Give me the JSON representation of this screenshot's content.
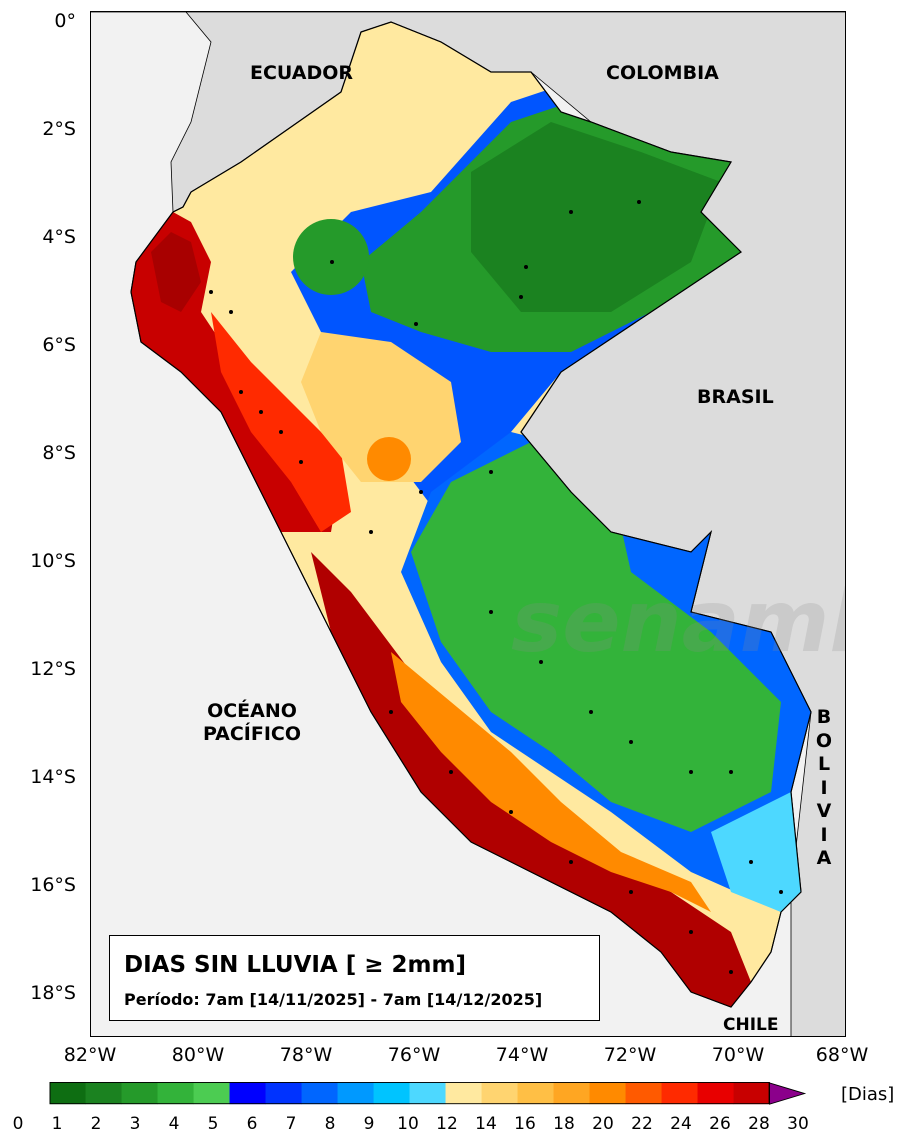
{
  "title": "DIAS SIN LLUVIA [ ≥ 2mm]",
  "period": "Período: 7am [14/11/2025] - 7am [14/12/2025]",
  "watermark": "senamhi",
  "lat_labels": [
    "0°",
    "2°S",
    "4°S",
    "6°S",
    "8°S",
    "10°S",
    "12°S",
    "14°S",
    "16°S",
    "18°S"
  ],
  "lon_labels": [
    "82°W",
    "80°W",
    "78°W",
    "76°W",
    "74°W",
    "72°W",
    "70°W",
    "68°W"
  ],
  "countries": {
    "ecuador": "ECUADOR",
    "colombia": "COLOMBIA",
    "brasil": "BRASIL",
    "chile": "CHILE",
    "bolivia": "B O L I V I A"
  },
  "ocean_line1": "OCÉANO",
  "ocean_line2": "PACÍFICO",
  "colorbar": {
    "unit": "[Dias]",
    "ticks": [
      "0",
      "1",
      "2",
      "3",
      "4",
      "5",
      "6",
      "7",
      "8",
      "9",
      "10",
      "12",
      "14",
      "16",
      "18",
      "20",
      "22",
      "24",
      "26",
      "28",
      "30"
    ],
    "colors": [
      "#0e6e12",
      "#1b8220",
      "#259a2a",
      "#33b33a",
      "#4ccc52",
      "#0000ff",
      "#0033ff",
      "#0066ff",
      "#0099ff",
      "#00c4ff",
      "#4dd8ff",
      "#ffe9a0",
      "#ffd470",
      "#ffbf45",
      "#ffa622",
      "#ff8a00",
      "#ff5a00",
      "#ff2a00",
      "#e80000",
      "#c80000",
      "#a80000"
    ],
    "extend_color": "#8b008b"
  }
}
